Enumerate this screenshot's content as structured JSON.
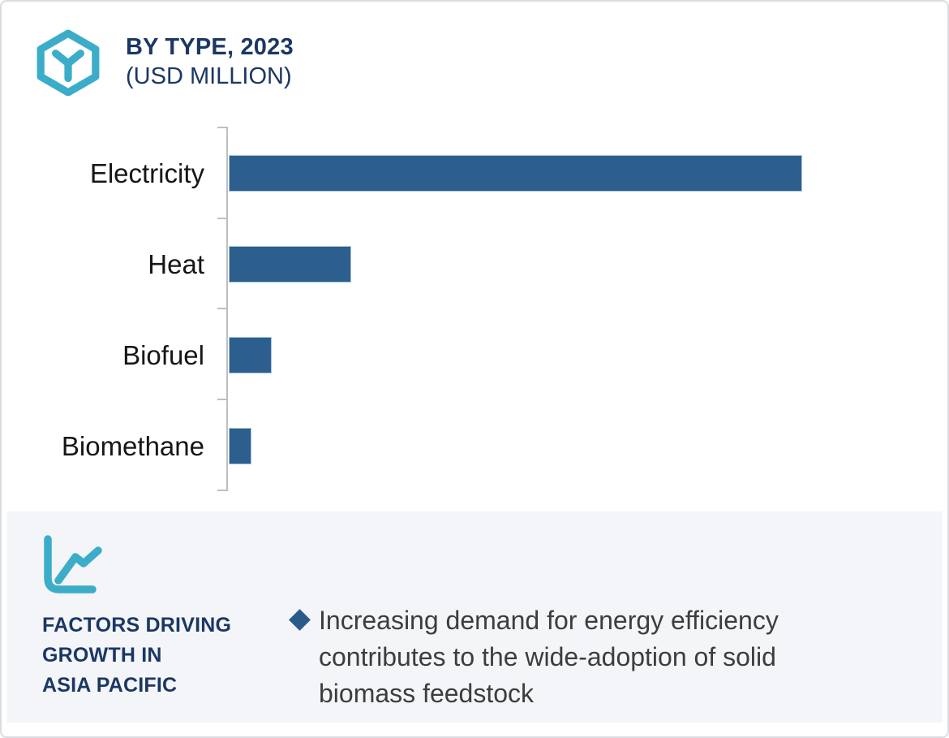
{
  "header": {
    "icon": "hexagon-y-molecule",
    "title": "BY TYPE, 2023",
    "subtitle": "(USD MILLION)"
  },
  "chart_data": {
    "type": "bar",
    "orientation": "horizontal",
    "title": "BY TYPE, 2023 (USD MILLION)",
    "categories": [
      "Electricity",
      "Heat",
      "Biofuel",
      "Biomethane"
    ],
    "values_pct_of_max": [
      100,
      21.3,
      7.5,
      4.0
    ],
    "value_axis_tick_labels": [],
    "bar_color": "#2C5E8E",
    "axis_color": "#BFBFBF",
    "gridlines": false,
    "legend": "none"
  },
  "panel": {
    "icon": "line-chart",
    "heading": "FACTORS DRIVING\nGROWTH IN\nASIA PACIFIC",
    "bullets": [
      {
        "marker": "diamond",
        "marker_color": "#2A5A8C",
        "text": "Increasing demand for energy efficiency\ncontributes to the wide-adoption of solid\nbiomass feedstock"
      }
    ]
  },
  "colors": {
    "accent_cyan": "#3BADC9",
    "heading_navy": "#1B3764",
    "bar_blue": "#2C5E8E",
    "panel_background": "#F3F5F9",
    "axis_gray": "#BFBFBF",
    "category_label_black": "#161616",
    "body_text": "#3D3D3D",
    "card_border": "#D9DCE1"
  }
}
